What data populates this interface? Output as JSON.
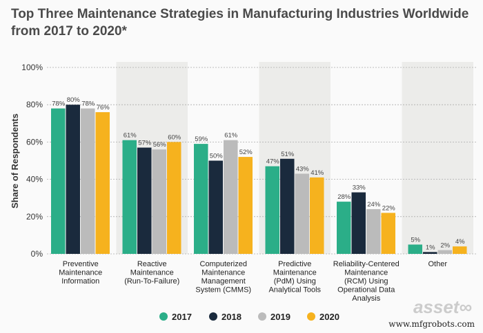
{
  "chart_data": {
    "type": "bar",
    "title": "Top Three Maintenance Strategies in Manufacturing Industries Worldwide from 2017 to 2020*",
    "ylabel": "Share of Respondents",
    "ylim": [
      0,
      100
    ],
    "yticks": [
      "0%",
      "20%",
      "40%",
      "60%",
      "80%",
      "100%"
    ],
    "grid": true,
    "legend": "bottom",
    "categories": [
      [
        "Preventive",
        "Maintenance",
        "Information"
      ],
      [
        "Reactive",
        "Maintenance",
        "(Run-To-Failure)"
      ],
      [
        "Computerized",
        "Maintenance",
        "Management",
        "System (CMMS)"
      ],
      [
        "Predictive",
        "Maintenance",
        "(PdM) Using",
        "Analytical Tools"
      ],
      [
        "Reliability-Centered",
        "Maintenance",
        "(RCM) Using",
        "Operational Data",
        "Analysis"
      ],
      [
        "Other"
      ]
    ],
    "series": [
      {
        "name": "2017",
        "color": "#2bae88",
        "values": [
          78,
          61,
          59,
          47,
          28,
          5
        ]
      },
      {
        "name": "2018",
        "color": "#1a2a3d",
        "values": [
          80,
          57,
          50,
          51,
          33,
          1
        ]
      },
      {
        "name": "2019",
        "color": "#bbbbbb",
        "values": [
          78,
          56,
          61,
          43,
          24,
          2
        ]
      },
      {
        "name": "2020",
        "color": "#f6b21e",
        "values": [
          76,
          60,
          52,
          41,
          22,
          4
        ]
      }
    ]
  },
  "watermark": "www.mfgrobots.com",
  "logo": "asset"
}
